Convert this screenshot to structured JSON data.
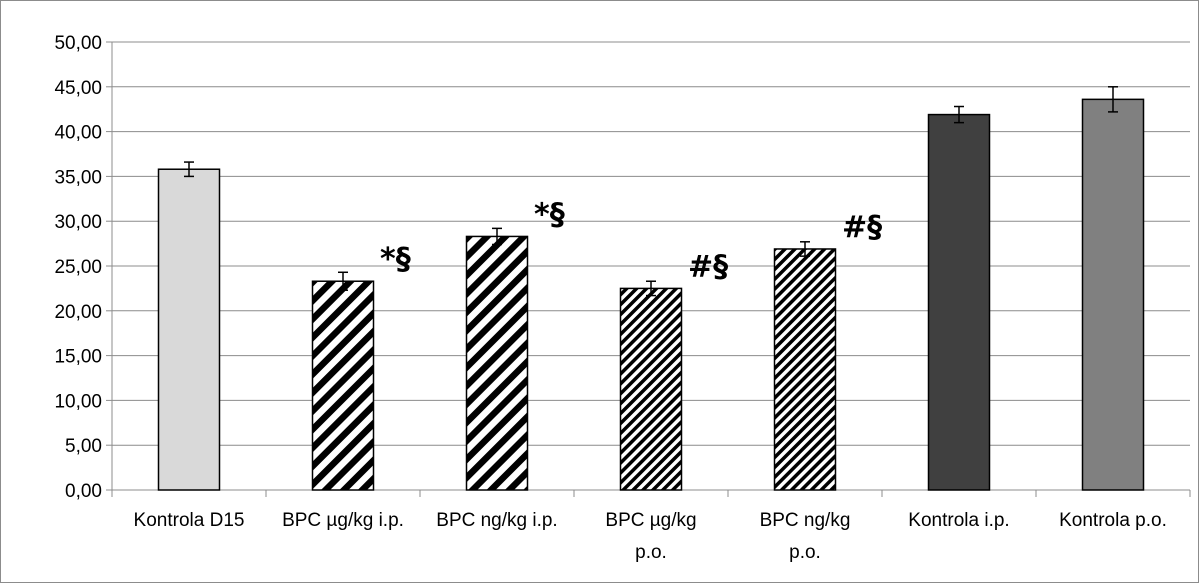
{
  "chart_data": {
    "type": "bar",
    "title": "",
    "xlabel": "",
    "ylabel": "",
    "ylim": [
      0,
      50
    ],
    "ytick_step": 5,
    "ytick_labels": [
      "0,00",
      "5,00",
      "10,00",
      "15,00",
      "20,00",
      "25,00",
      "30,00",
      "35,00",
      "40,00",
      "45,00",
      "50,00"
    ],
    "grid": true,
    "legend": "none",
    "categories": [
      [
        "Kontrola D15"
      ],
      [
        "BPC µg/kg i.p."
      ],
      [
        "BPC ng/kg i.p."
      ],
      [
        "BPC µg/kg",
        "p.o."
      ],
      [
        "BPC ng/kg",
        "p.o."
      ],
      [
        "Kontrola i.p."
      ],
      [
        "Kontrola p.o."
      ]
    ],
    "values": [
      35.8,
      23.3,
      28.3,
      22.5,
      26.9,
      41.9,
      43.6
    ],
    "errors": [
      0.8,
      1.0,
      0.9,
      0.8,
      0.8,
      0.9,
      1.4
    ],
    "annotations": [
      "",
      "*§",
      "*§",
      "#§",
      "#§",
      "",
      ""
    ],
    "fills": [
      "solid",
      "stripes-wide",
      "stripes-wide",
      "stripes-fine",
      "stripes-fine",
      "solid",
      "solid"
    ],
    "colors": [
      "#d9d9d9",
      "#000000",
      "#000000",
      "#000000",
      "#000000",
      "#404040",
      "#808080"
    ]
  }
}
